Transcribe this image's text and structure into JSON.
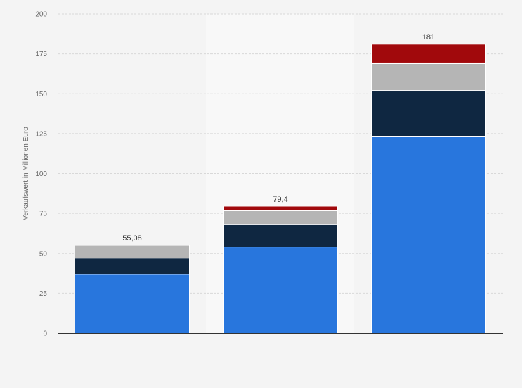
{
  "chart_data": {
    "type": "bar",
    "stacked": true,
    "categories": [
      "",
      "",
      ""
    ],
    "series": [
      {
        "color": "#2876dd",
        "values": [
          37,
          54,
          123
        ]
      },
      {
        "color": "#0f2741",
        "values": [
          10,
          14,
          29
        ]
      },
      {
        "color": "#b5b5b5",
        "values": [
          8.08,
          9,
          17
        ]
      },
      {
        "color": "#a1090c",
        "values": [
          0,
          2.4,
          12
        ]
      }
    ],
    "totals": [
      "55,08",
      "79,4",
      "181"
    ],
    "ylabel": "Verkaufswert in Millionen Euro",
    "xlabel": "",
    "ylim": [
      0,
      200
    ],
    "yticks": [
      0,
      25,
      50,
      75,
      100,
      125,
      150,
      175,
      200
    ],
    "grid": true,
    "highlight_category": 1,
    "highlight_color": "#f8f8f8"
  }
}
